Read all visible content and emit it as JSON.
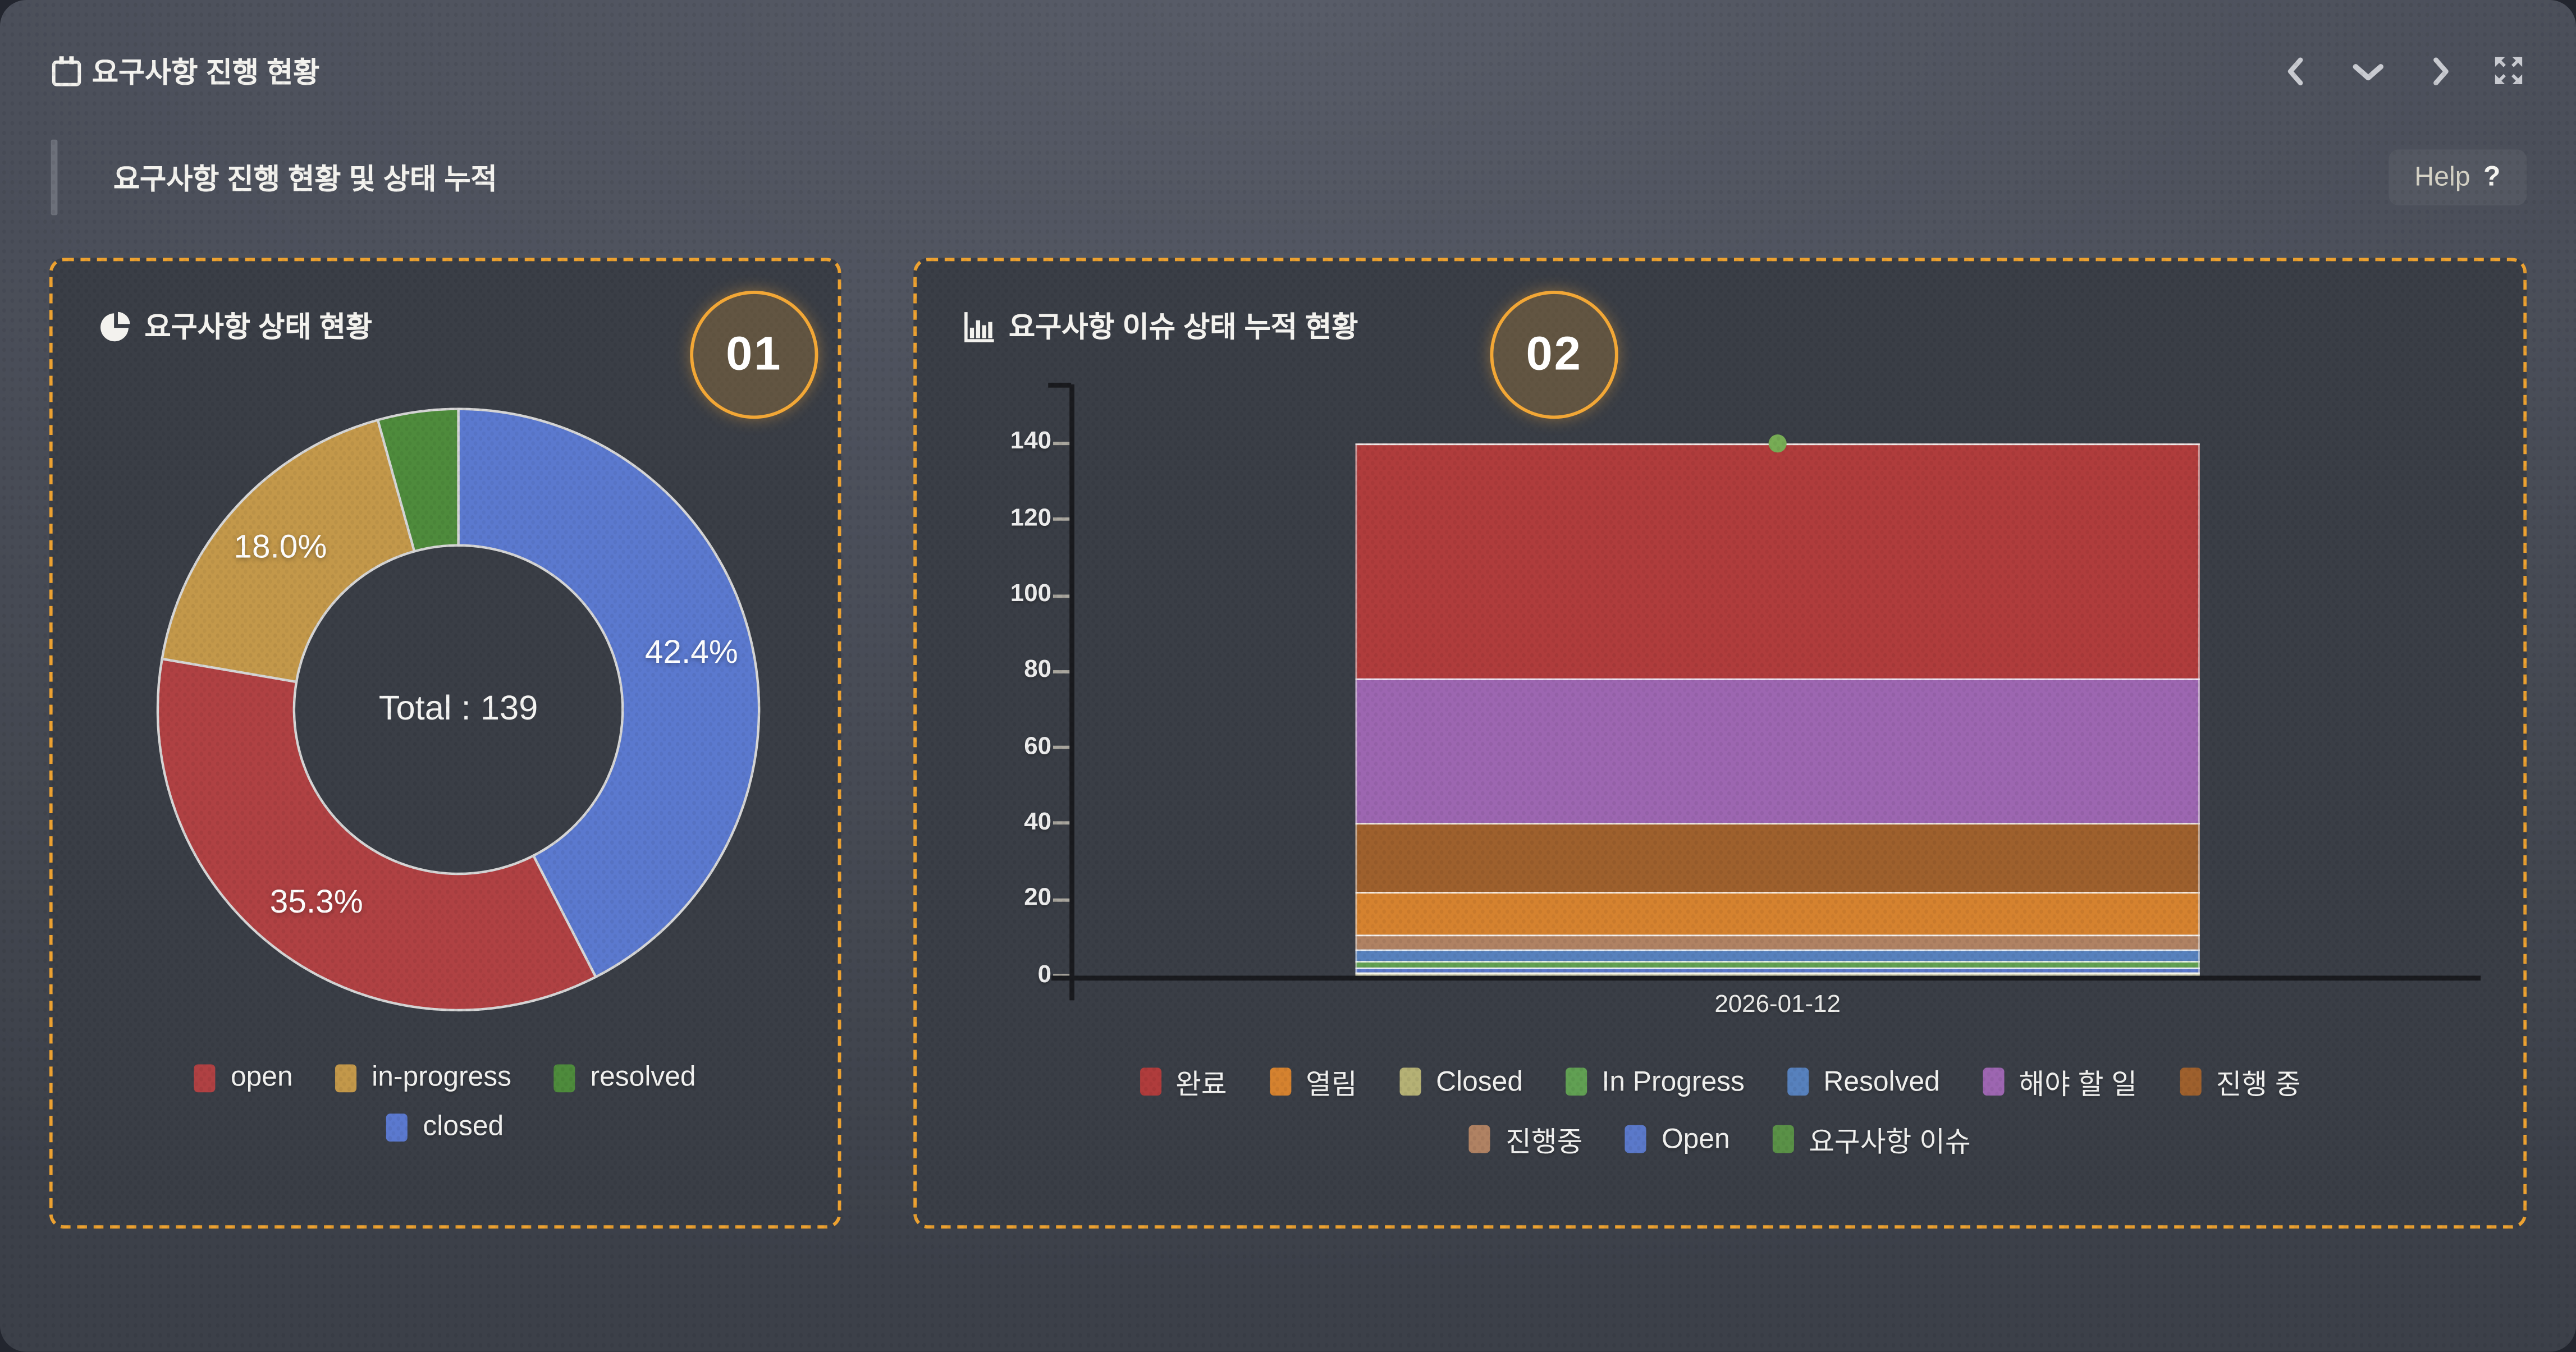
{
  "header": {
    "title": "요구사항 진행 현황",
    "subtitle": "요구사항 진행 현황 및 상태 누적",
    "help_label": "Help",
    "help_qmark": "?"
  },
  "nav_icons": [
    "chevron-left-icon",
    "chevron-down-icon",
    "chevron-right-icon",
    "expand-icon"
  ],
  "panels": [
    {
      "badge": "01",
      "title": "요구사항 상태 현황",
      "title_icon": "pie-chart-icon"
    },
    {
      "badge": "02",
      "title": "요구사항 이슈 상태 누적 현황",
      "title_icon": "bar-chart-icon"
    }
  ],
  "chart_data": [
    {
      "type": "pie",
      "title": "요구사항 상태 현황",
      "center_label": "Total : 139",
      "total": 139,
      "donut": true,
      "start_at_top_clockwise": true,
      "series": [
        {
          "name": "closed",
          "value": 59,
          "pct_label": "42.4%",
          "color": "#5b79cf"
        },
        {
          "name": "open",
          "value": 49,
          "pct_label": "35.3%",
          "color": "#b04143"
        },
        {
          "name": "in-progress",
          "value": 25,
          "pct_label": "18.0%",
          "color": "#c3984a"
        },
        {
          "name": "resolved",
          "value": 6,
          "pct_label": "",
          "color": "#4e8b3c"
        }
      ],
      "legend_rows": [
        [
          "open",
          "in-progress",
          "resolved"
        ],
        [
          "closed"
        ]
      ],
      "legend_colors": {
        "open": "#b04143",
        "in-progress": "#c3984a",
        "resolved": "#4e8b3c",
        "closed": "#5b79cf"
      }
    },
    {
      "type": "bar",
      "stacked": true,
      "title": "요구사항 이슈 상태 누적 현황",
      "categories": [
        "2026-01-12"
      ],
      "ylabel": "",
      "xlabel": "",
      "ylim": [
        0,
        155
      ],
      "yticks": [
        0,
        20,
        40,
        60,
        80,
        100,
        120,
        140
      ],
      "grid": false,
      "series_bottom_to_top": [
        {
          "name": "Closed",
          "value": 1,
          "color": "#b5b175"
        },
        {
          "name": "Open",
          "value": 1,
          "color": "#5b79ca"
        },
        {
          "name": "In Progress",
          "value": 2,
          "color": "#61a053"
        },
        {
          "name": "Resolved",
          "value": 3,
          "color": "#5781bd"
        },
        {
          "name": "진행중",
          "value": 4,
          "color": "#b08263"
        },
        {
          "name": "열림",
          "value": 11,
          "color": "#d5822f"
        },
        {
          "name": "진행 중",
          "value": 18,
          "color": "#9e602d"
        },
        {
          "name": "해야 할 일",
          "value": 38,
          "color": "#9d66b1"
        },
        {
          "name": "완료",
          "value": 62,
          "color": "#b03c3c"
        }
      ],
      "stack_total": 140,
      "scatter_point": {
        "name": "요구사항 이슈",
        "value": 140,
        "color": "#77ac55"
      },
      "legend_rows": [
        [
          "완료",
          "열림",
          "Closed",
          "In Progress",
          "Resolved",
          "해야 할 일",
          "진행 중"
        ],
        [
          "진행중",
          "Open",
          "요구사항 이슈"
        ]
      ],
      "legend_colors": {
        "완료": "#b03c3c",
        "열림": "#d5822f",
        "Closed": "#b5b175",
        "In Progress": "#61a053",
        "Resolved": "#5781bd",
        "해야 할 일": "#9d66b1",
        "진행 중": "#9e602d",
        "진행중": "#b08263",
        "Open": "#5b79ca",
        "요구사항 이슈": "#5a9147"
      }
    }
  ]
}
